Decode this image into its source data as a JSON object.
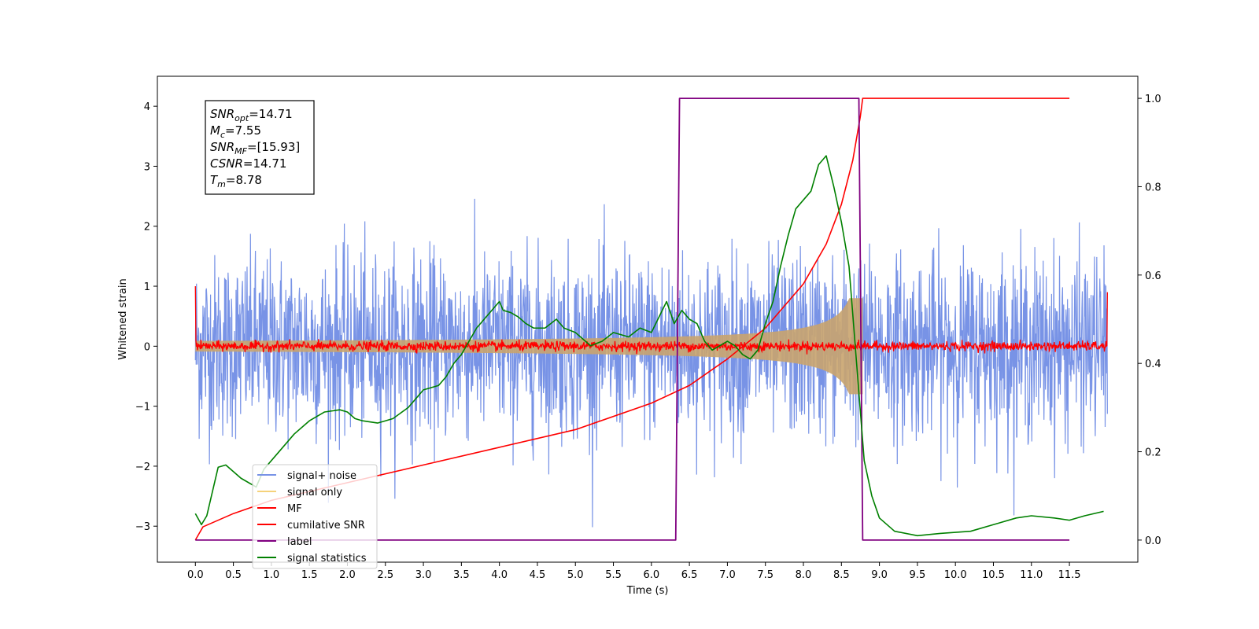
{
  "chart_data": {
    "type": "line",
    "xlabel": "Time (s)",
    "ylabel": "Whitened strain",
    "xlim": [
      -0.5,
      12.4
    ],
    "ylim": [
      -3.6,
      4.5
    ],
    "y2lim": [
      -0.05,
      1.05
    ],
    "grid": false,
    "legend_position": "bottom-left",
    "x_ticks": [
      "0.0",
      "0.5",
      "1.0",
      "1.5",
      "2.0",
      "2.5",
      "3.0",
      "3.5",
      "4.0",
      "4.5",
      "5.0",
      "5.5",
      "6.0",
      "6.5",
      "7.0",
      "7.5",
      "8.0",
      "8.5",
      "9.0",
      "9.5",
      "10.0",
      "10.5",
      "11.0",
      "11.5"
    ],
    "y_ticks": [
      "4",
      "3",
      "2",
      "1",
      "0",
      "−1",
      "−2",
      "−3"
    ],
    "y2_ticks": [
      "1.0",
      "0.8",
      "0.6",
      "0.4",
      "0.2",
      "0.0"
    ],
    "annotation": [
      {
        "sym": "SNR",
        "sub": "opt",
        "value": "=14.71"
      },
      {
        "sym": "M",
        "sub": "c",
        "value": "=7.55"
      },
      {
        "sym": "SNR",
        "sub": "MF",
        "value": "=[15.93]"
      },
      {
        "sym": "CSNR",
        "sub": "",
        "value": "=14.71"
      },
      {
        "sym": "T",
        "sub": "m",
        "value": "=8.78"
      }
    ],
    "series": [
      {
        "name": "signal+ noise",
        "color": "#7893e6",
        "kind": "noise",
        "x_range": [
          0,
          12
        ],
        "amplitude_std": 0.75,
        "axis": "left"
      },
      {
        "name": "signal only",
        "color": "#f5d27a",
        "kind": "chirp_envelope",
        "x_range": [
          0,
          8.78
        ],
        "envelope_start": 0.04,
        "envelope_end": 0.8,
        "axis": "left"
      },
      {
        "name": "MF",
        "color": "#ff0000",
        "kind": "matched_filter",
        "x_range": [
          0,
          12
        ],
        "noise_std": 0.04,
        "edge_values": [
          1.0,
          0.9
        ],
        "axis": "left"
      },
      {
        "name": "cumilative SNR",
        "color": "#ff0000",
        "kind": "cumulative",
        "axis": "right",
        "x": [
          0,
          0.1,
          0.5,
          1.0,
          2.0,
          3.0,
          4.0,
          5.0,
          6.0,
          6.5,
          7.0,
          7.5,
          8.0,
          8.3,
          8.5,
          8.65,
          8.75,
          8.78,
          11.5
        ],
        "y": [
          0.0,
          0.03,
          0.06,
          0.09,
          0.13,
          0.17,
          0.21,
          0.25,
          0.31,
          0.35,
          0.41,
          0.48,
          0.58,
          0.67,
          0.76,
          0.86,
          0.96,
          1.0,
          1.0
        ]
      },
      {
        "name": "label",
        "color": "#800080",
        "kind": "step",
        "axis": "right",
        "x": [
          0,
          6.32,
          6.37,
          8.73,
          8.78,
          11.5
        ],
        "y": [
          0,
          0,
          1,
          1,
          0,
          0
        ]
      },
      {
        "name": "signal statistics",
        "color": "#008000",
        "kind": "line",
        "axis": "right",
        "x": [
          0.0,
          0.08,
          0.15,
          0.3,
          0.4,
          0.6,
          0.8,
          0.9,
          1.1,
          1.3,
          1.5,
          1.7,
          1.9,
          2.0,
          2.1,
          2.2,
          2.4,
          2.5,
          2.6,
          2.8,
          3.0,
          3.2,
          3.3,
          3.4,
          3.5,
          3.6,
          3.7,
          3.8,
          3.9,
          4.0,
          4.05,
          4.15,
          4.25,
          4.35,
          4.45,
          4.6,
          4.75,
          4.85,
          5.0,
          5.2,
          5.35,
          5.5,
          5.7,
          5.85,
          6.0,
          6.2,
          6.3,
          6.4,
          6.5,
          6.6,
          6.7,
          6.8,
          6.9,
          7.0,
          7.1,
          7.2,
          7.3,
          7.4,
          7.5,
          7.6,
          7.7,
          7.8,
          7.9,
          8.0,
          8.1,
          8.2,
          8.3,
          8.4,
          8.5,
          8.6,
          8.7,
          8.8,
          8.9,
          9.0,
          9.2,
          9.5,
          9.8,
          10.2,
          10.5,
          10.8,
          11.0,
          11.3,
          11.5,
          11.7,
          11.95
        ],
        "y": [
          0.06,
          0.035,
          0.055,
          0.165,
          0.17,
          0.14,
          0.12,
          0.16,
          0.2,
          0.24,
          0.27,
          0.29,
          0.295,
          0.29,
          0.275,
          0.27,
          0.265,
          0.27,
          0.275,
          0.3,
          0.34,
          0.35,
          0.37,
          0.4,
          0.42,
          0.45,
          0.48,
          0.5,
          0.52,
          0.54,
          0.52,
          0.515,
          0.505,
          0.49,
          0.48,
          0.48,
          0.5,
          0.48,
          0.47,
          0.44,
          0.45,
          0.47,
          0.46,
          0.48,
          0.47,
          0.54,
          0.49,
          0.52,
          0.5,
          0.49,
          0.45,
          0.43,
          0.44,
          0.45,
          0.44,
          0.42,
          0.41,
          0.43,
          0.49,
          0.54,
          0.62,
          0.69,
          0.75,
          0.77,
          0.79,
          0.85,
          0.87,
          0.8,
          0.72,
          0.62,
          0.4,
          0.18,
          0.1,
          0.05,
          0.02,
          0.01,
          0.015,
          0.02,
          0.035,
          0.05,
          0.055,
          0.05,
          0.045,
          0.055,
          0.065
        ]
      }
    ]
  }
}
